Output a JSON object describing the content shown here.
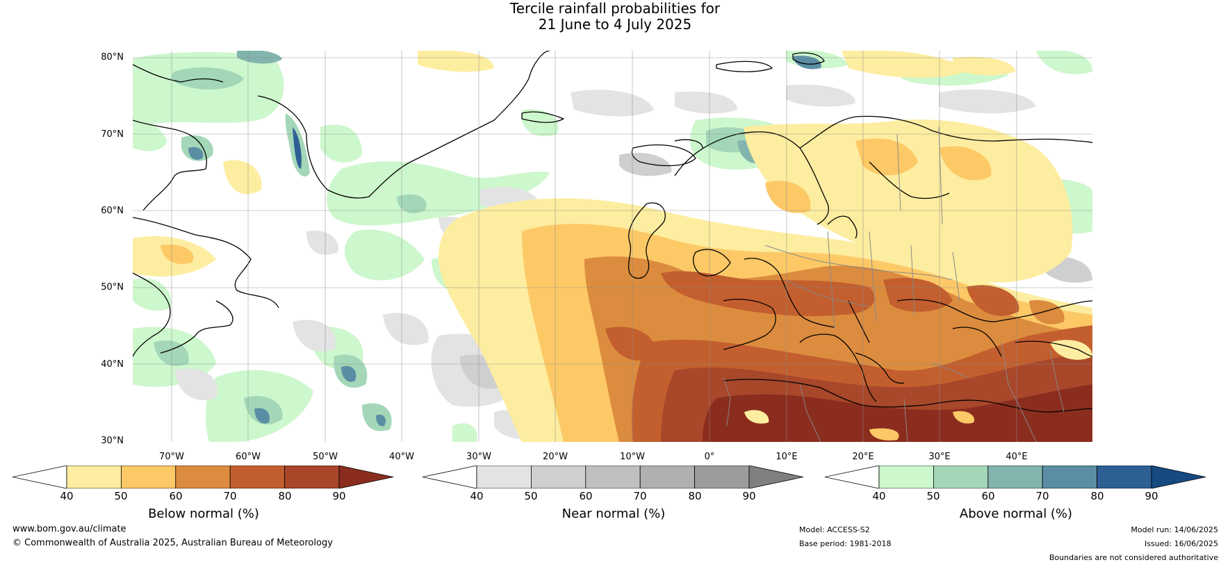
{
  "title": {
    "line1": "Tercile rainfall probabilities for",
    "line2": "21 June to 4 July 2025"
  },
  "map": {
    "region": "Europe / North Atlantic",
    "lat_labels": [
      "80°N",
      "70°N",
      "60°N",
      "50°N",
      "40°N",
      "30°N"
    ],
    "lon_labels": [
      "70°W",
      "60°W",
      "50°W",
      "40°W",
      "30°W",
      "20°W",
      "10°W",
      "0°",
      "10°E",
      "20°E",
      "30°E",
      "40°E"
    ],
    "colors": {
      "below": [
        "#fdeda0",
        "#fdc967",
        "#dc8c3e",
        "#c35f2e",
        "#a8472a",
        "#8b2d1e"
      ],
      "near": [
        "#e3e3e3",
        "#cfcfcf",
        "#c0c0c0",
        "#b0b0b0",
        "#9c9c9c",
        "#808080"
      ],
      "above": [
        "#cdf7cd",
        "#a3d7b8",
        "#82b5ad",
        "#5b8ea4",
        "#2d5f95",
        "#164a80"
      ]
    }
  },
  "colorbars": [
    {
      "title": "Below normal (%)",
      "ticks": [
        "40",
        "50",
        "60",
        "70",
        "80",
        "90"
      ]
    },
    {
      "title": "Near normal (%)",
      "ticks": [
        "40",
        "50",
        "60",
        "70",
        "80",
        "90"
      ]
    },
    {
      "title": "Above normal (%)",
      "ticks": [
        "40",
        "50",
        "60",
        "70",
        "80",
        "90"
      ]
    }
  ],
  "footer": {
    "website": "www.bom.gov.au/climate",
    "copyright": "© Commonwealth of Australia 2025, Australian Bureau of Meteorology",
    "model": "Model: ACCESS-S2",
    "base_period": "Base period: 1981-2018",
    "model_run": "Model run: 14/06/2025",
    "issued": "Issued: 16/06/2025",
    "disclaimer": "Boundaries are not considered authoritative"
  }
}
